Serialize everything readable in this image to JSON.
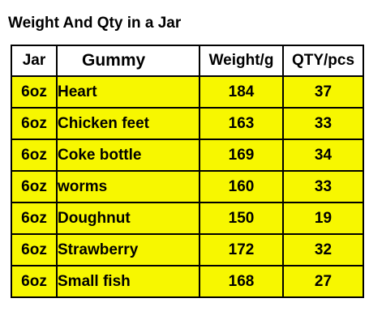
{
  "title": "Weight And Qty in a Jar",
  "table": {
    "headers": {
      "jar": "Jar",
      "gummy": "Gummy",
      "weight": "Weight/g",
      "qty": "QTY/pcs"
    },
    "rows": [
      {
        "jar": "6oz",
        "gummy": "Heart",
        "weight": "184",
        "qty": "37"
      },
      {
        "jar": "6oz",
        "gummy": "Chicken feet",
        "weight": "163",
        "qty": "33"
      },
      {
        "jar": "6oz",
        "gummy": "Coke bottle",
        "weight": "169",
        "qty": "34"
      },
      {
        "jar": "6oz",
        "gummy": "worms",
        "weight": "160",
        "qty": "33"
      },
      {
        "jar": "6oz",
        "gummy": "Doughnut",
        "weight": "150",
        "qty": "19"
      },
      {
        "jar": "6oz",
        "gummy": "Strawberry",
        "weight": "172",
        "qty": "32"
      },
      {
        "jar": "6oz",
        "gummy": "Small fish",
        "weight": "168",
        "qty": "27"
      }
    ]
  },
  "colors": {
    "row_background": "#f7f700",
    "header_background": "#ffffff",
    "border": "#000000"
  }
}
